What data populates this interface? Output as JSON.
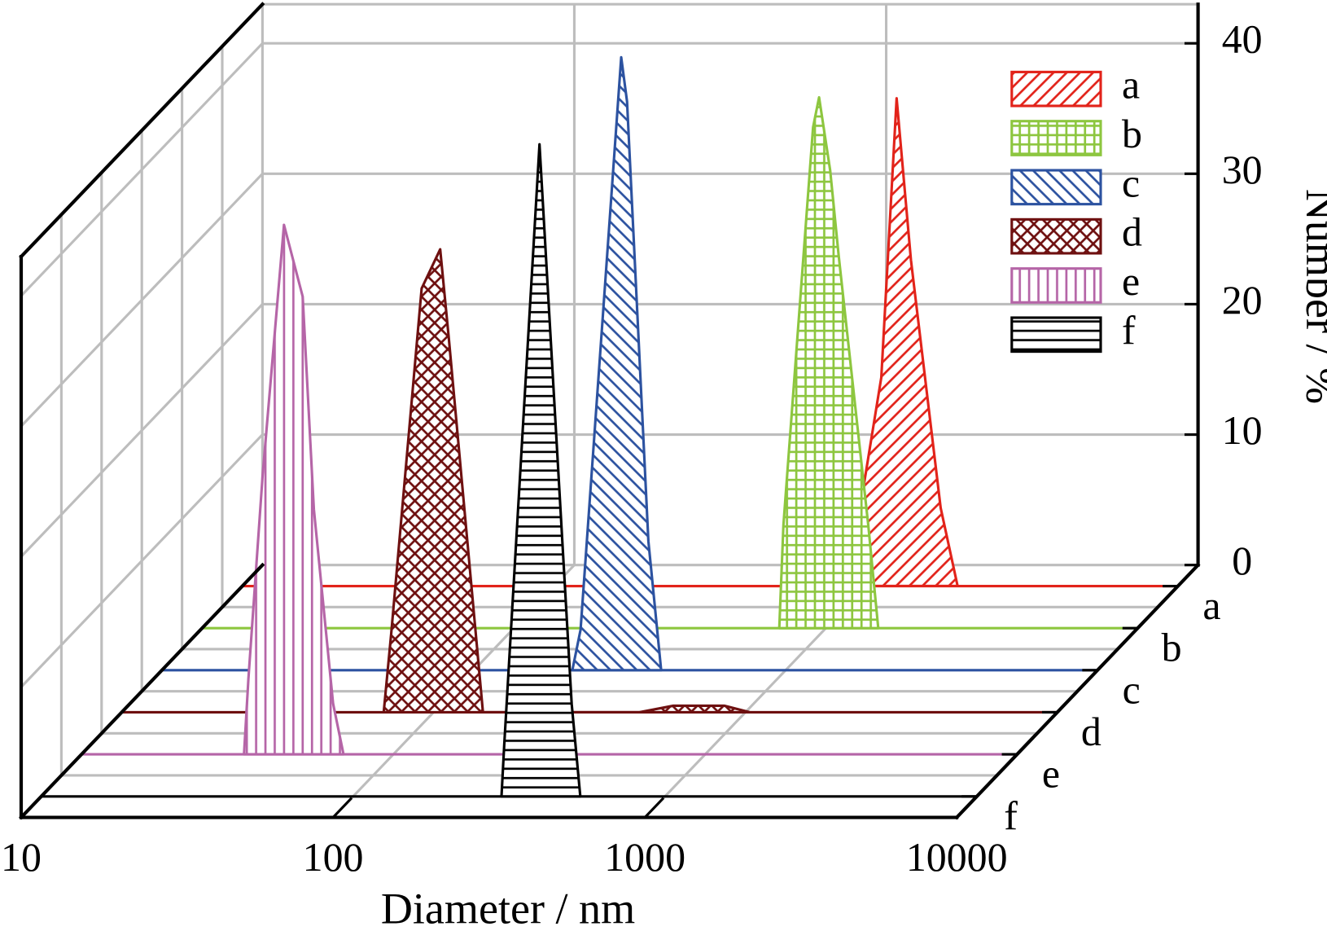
{
  "chart_data": {
    "type": "waterfall-area",
    "x_label": "Diameter / nm",
    "y_label": "Number / %",
    "xscale": "log",
    "xlim": [
      10,
      10000
    ],
    "xticks": [
      10,
      100,
      1000,
      10000
    ],
    "ylim": [
      0,
      43
    ],
    "yticks": [
      0,
      10,
      20,
      30,
      40
    ],
    "grid": true,
    "legend": "upper right",
    "series": [
      {
        "name": "a",
        "color": "#e2231a",
        "pattern": "diagonal",
        "x": [
          871,
          957,
          1119,
          1253,
          1393,
          1734,
          1965
        ],
        "values": [
          0,
          6,
          16,
          37.4,
          25,
          6,
          0
        ]
      },
      {
        "name": "b",
        "color": "#8dc63f",
        "pattern": "grid",
        "x": [
          709,
          731,
          910,
          951,
          1032,
          1099,
          1368,
          1472
        ],
        "values": [
          0,
          7.9,
          38.4,
          40.7,
          35.1,
          28.6,
          7.9,
          0
        ]
      },
      {
        "name": "c",
        "color": "#2c52a0",
        "pattern": "back-diagonal",
        "x": [
          207,
          220,
          297,
          310,
          363,
          399
        ],
        "values": [
          0,
          3.1,
          47,
          43.6,
          9.9,
          0
        ]
      },
      {
        "name": "d",
        "color": "#6e1010",
        "pattern": "crosshatch",
        "x": [
          69.2,
          73.1,
          91.6,
          105,
          112,
          144,
          457,
          587,
          855,
          1032
        ],
        "values": [
          0,
          6,
          32.5,
          35.5,
          28.6,
          0,
          0,
          0.5,
          0.5,
          0
        ]
      },
      {
        "name": "e",
        "color": "#b565a7",
        "pattern": "vertical",
        "x": [
          33.2,
          34.3,
          38.1,
          44.6,
          51.2,
          55.6,
          64.1,
          69.2
        ],
        "values": [
          0,
          5.8,
          21.4,
          40.6,
          35.1,
          18.8,
          3.9,
          0
        ]
      },
      {
        "name": "f",
        "color": "#000000",
        "pattern": "horizontal",
        "x": [
          299,
          305,
          396,
          502,
          535
        ],
        "values": [
          0,
          3.9,
          50,
          7.1,
          0
        ]
      }
    ]
  }
}
